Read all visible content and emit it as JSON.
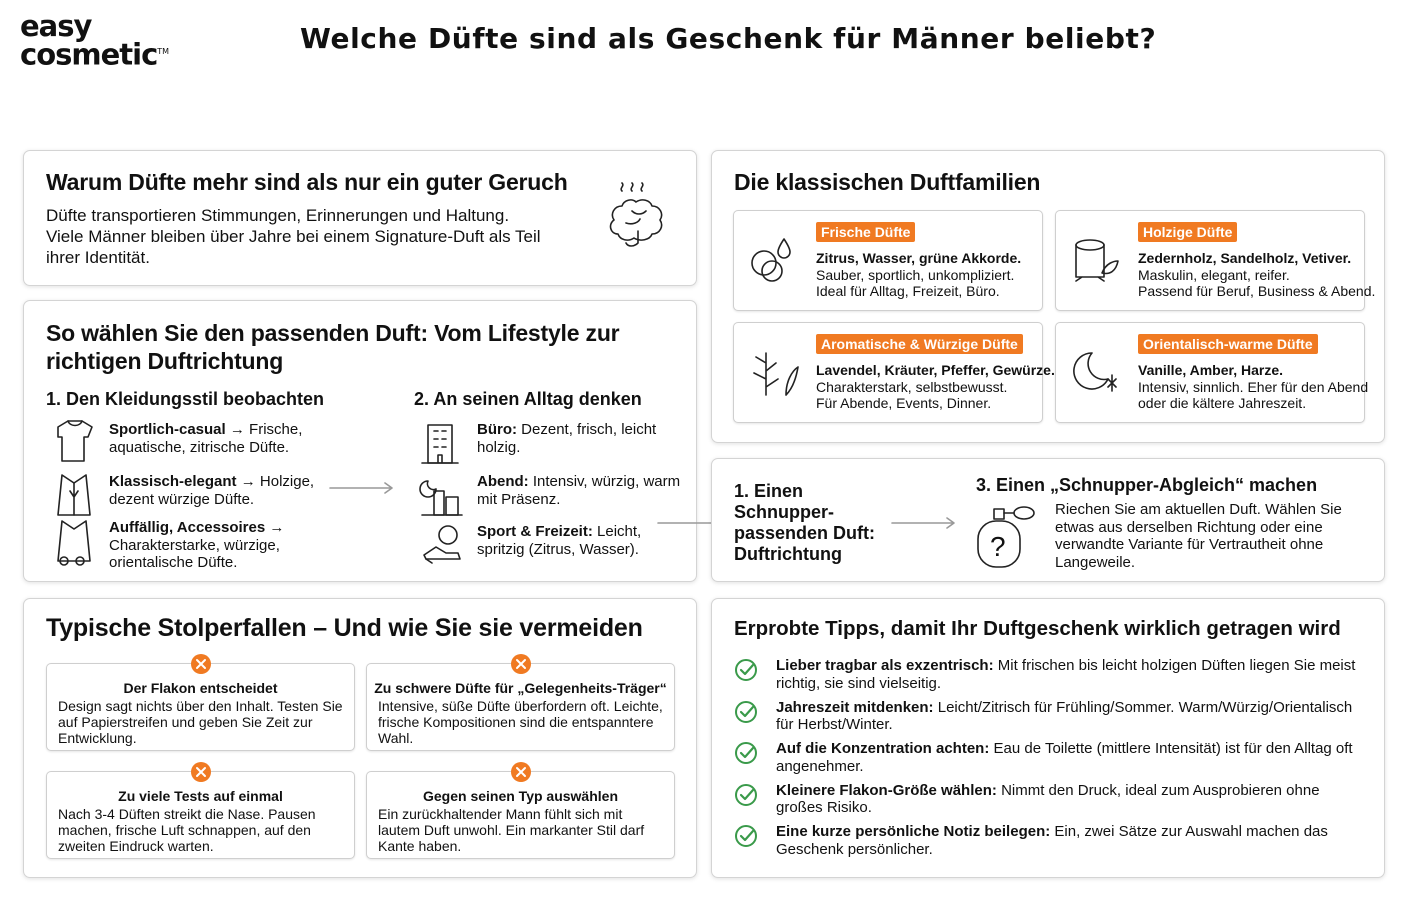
{
  "header": {
    "logo_line1": "easy",
    "logo_line2": "cosmetic",
    "logo_tm": "TM",
    "title": "Welche Düfte sind als Geschenk für Männer beliebt?"
  },
  "why": {
    "title": "Warum Düfte mehr sind als nur ein guter Geruch",
    "text": "Düfte transportieren Stimmungen, Erinnerungen und Haltung. Viele Männer bleiben über Jahre bei einem Signature-Duft als Teil ihrer Identität."
  },
  "choose": {
    "title": "So wählen Sie den passenden Duft: Vom Lifestyle zur richtigen Duftrichtung",
    "columns": [
      {
        "heading": "1. Den Kleidungsstil beobachten",
        "items": [
          {
            "bold": "Sportlich-casual",
            "text": "→ Frische, aquatische, zitrische Düfte."
          },
          {
            "bold": "Klassisch-elegant",
            "text": "→ Holzige, dezent würzige Düfte."
          },
          {
            "bold": "Auffällig, Accessoires →",
            "text": "Charakterstarke, würzige, orientalische Düfte."
          }
        ]
      },
      {
        "heading": "2. An seinen Alltag denken",
        "items": [
          {
            "bold": "Büro:",
            "text": "Dezent, frisch, leicht holzig."
          },
          {
            "bold": "Abend:",
            "text": "Intensiv, würzig, warm mit Präsenz."
          },
          {
            "bold": "Sport & Freizeit:",
            "text": "Leicht, spritzig (Zitrus, Wasser)."
          }
        ]
      }
    ]
  },
  "families": {
    "title": "Die klassischen Duftfamilien",
    "cards": [
      {
        "tag": "Frische Düfte",
        "bold": "Zitrus, Wasser, grüne Akkorde.",
        "lines": [
          "Sauber, sportlich, unkompliziert.",
          "Ideal für Alltag, Freizeit, Büro."
        ]
      },
      {
        "tag": "Holzige Düfte",
        "bold": "Zedernholz, Sandelholz, Vetiver.",
        "lines": [
          "Maskulin, elegant, reifer.",
          "Passend für Beruf, Business & Abend."
        ]
      },
      {
        "tag": "Aromatische & Würzige Düfte",
        "bold": "Lavendel, Kräuter, Pfeffer, Gewürze.",
        "lines": [
          "Charakterstark, selbstbewusst.",
          "Für Abende, Events, Dinner."
        ]
      },
      {
        "tag": "Orientalisch-warme Düfte",
        "bold": "Vanille, Amber, Harze.",
        "lines": [
          "Intensiv, sinnlich. Eher für den Abend",
          "oder die kältere Jahreszeit."
        ]
      }
    ]
  },
  "steps": {
    "step1": "1. Einen Schnupper-passenden Duft: Duftrichtung",
    "step3_title": "3. Einen „Schnupper-Abgleich“ machen",
    "step3_text": "Riechen Sie am aktuellen Duft. Wählen Sie etwas aus derselben Richtung oder eine verwandte Variante für Vertrautheit ohne Langeweile.",
    "icon_symbol": "?"
  },
  "pitfalls": {
    "title": "Typische Stolperfallen – Und wie Sie sie vermeiden",
    "cards": [
      {
        "title": "Der Flakon entscheidet",
        "text": "Design sagt nichts über den Inhalt. Testen Sie auf Papierstreifen und geben Sie Zeit zur Entwicklung."
      },
      {
        "title": "Zu schwere Düfte für „Gelegenheits-Träger“",
        "text": "Intensive, süße Düfte überfordern oft. Leichte, frische Kompositionen sind die entspanntere Wahl."
      },
      {
        "title": "Zu viele Tests auf einmal",
        "text": "Nach 3-4 Düften streikt die Nase. Pausen machen, frische Luft schnappen, auf den zweiten Eindruck warten."
      },
      {
        "title": "Gegen seinen Typ auswählen",
        "text": "Ein zurückhaltender Mann fühlt sich mit lautem Duft unwohl. Ein markanter Stil darf Kante haben."
      }
    ]
  },
  "tips": {
    "title": "Erprobte Tipps, damit Ihr Duftgeschenk wirklich getragen wird",
    "items": [
      {
        "bold": "Lieber tragbar als exzentrisch:",
        "text": "Mit frischen bis leicht holzigen Düften liegen Sie meist richtig, sie sind vielseitig."
      },
      {
        "bold": "Jahreszeit mitdenken:",
        "text": "Leicht/Zitrisch für Frühling/Sommer. Warm/Würzig/Orientalisch für Herbst/Winter."
      },
      {
        "bold": "Auf die Konzentration achten:",
        "text": "Eau de Toilette (mittlere Intensität) ist für den Alltag oft angenehmer."
      },
      {
        "bold": "Kleinere Flakon-Größe wählen:",
        "text": "Nimmt den Druck, ideal zum Ausprobieren ohne großes Risiko."
      },
      {
        "bold": "Eine kurze persönliche Notiz beilegen:",
        "text": "Ein, zwei Sätze zur Auswahl machen das Geschenk persönlicher."
      }
    ]
  }
}
